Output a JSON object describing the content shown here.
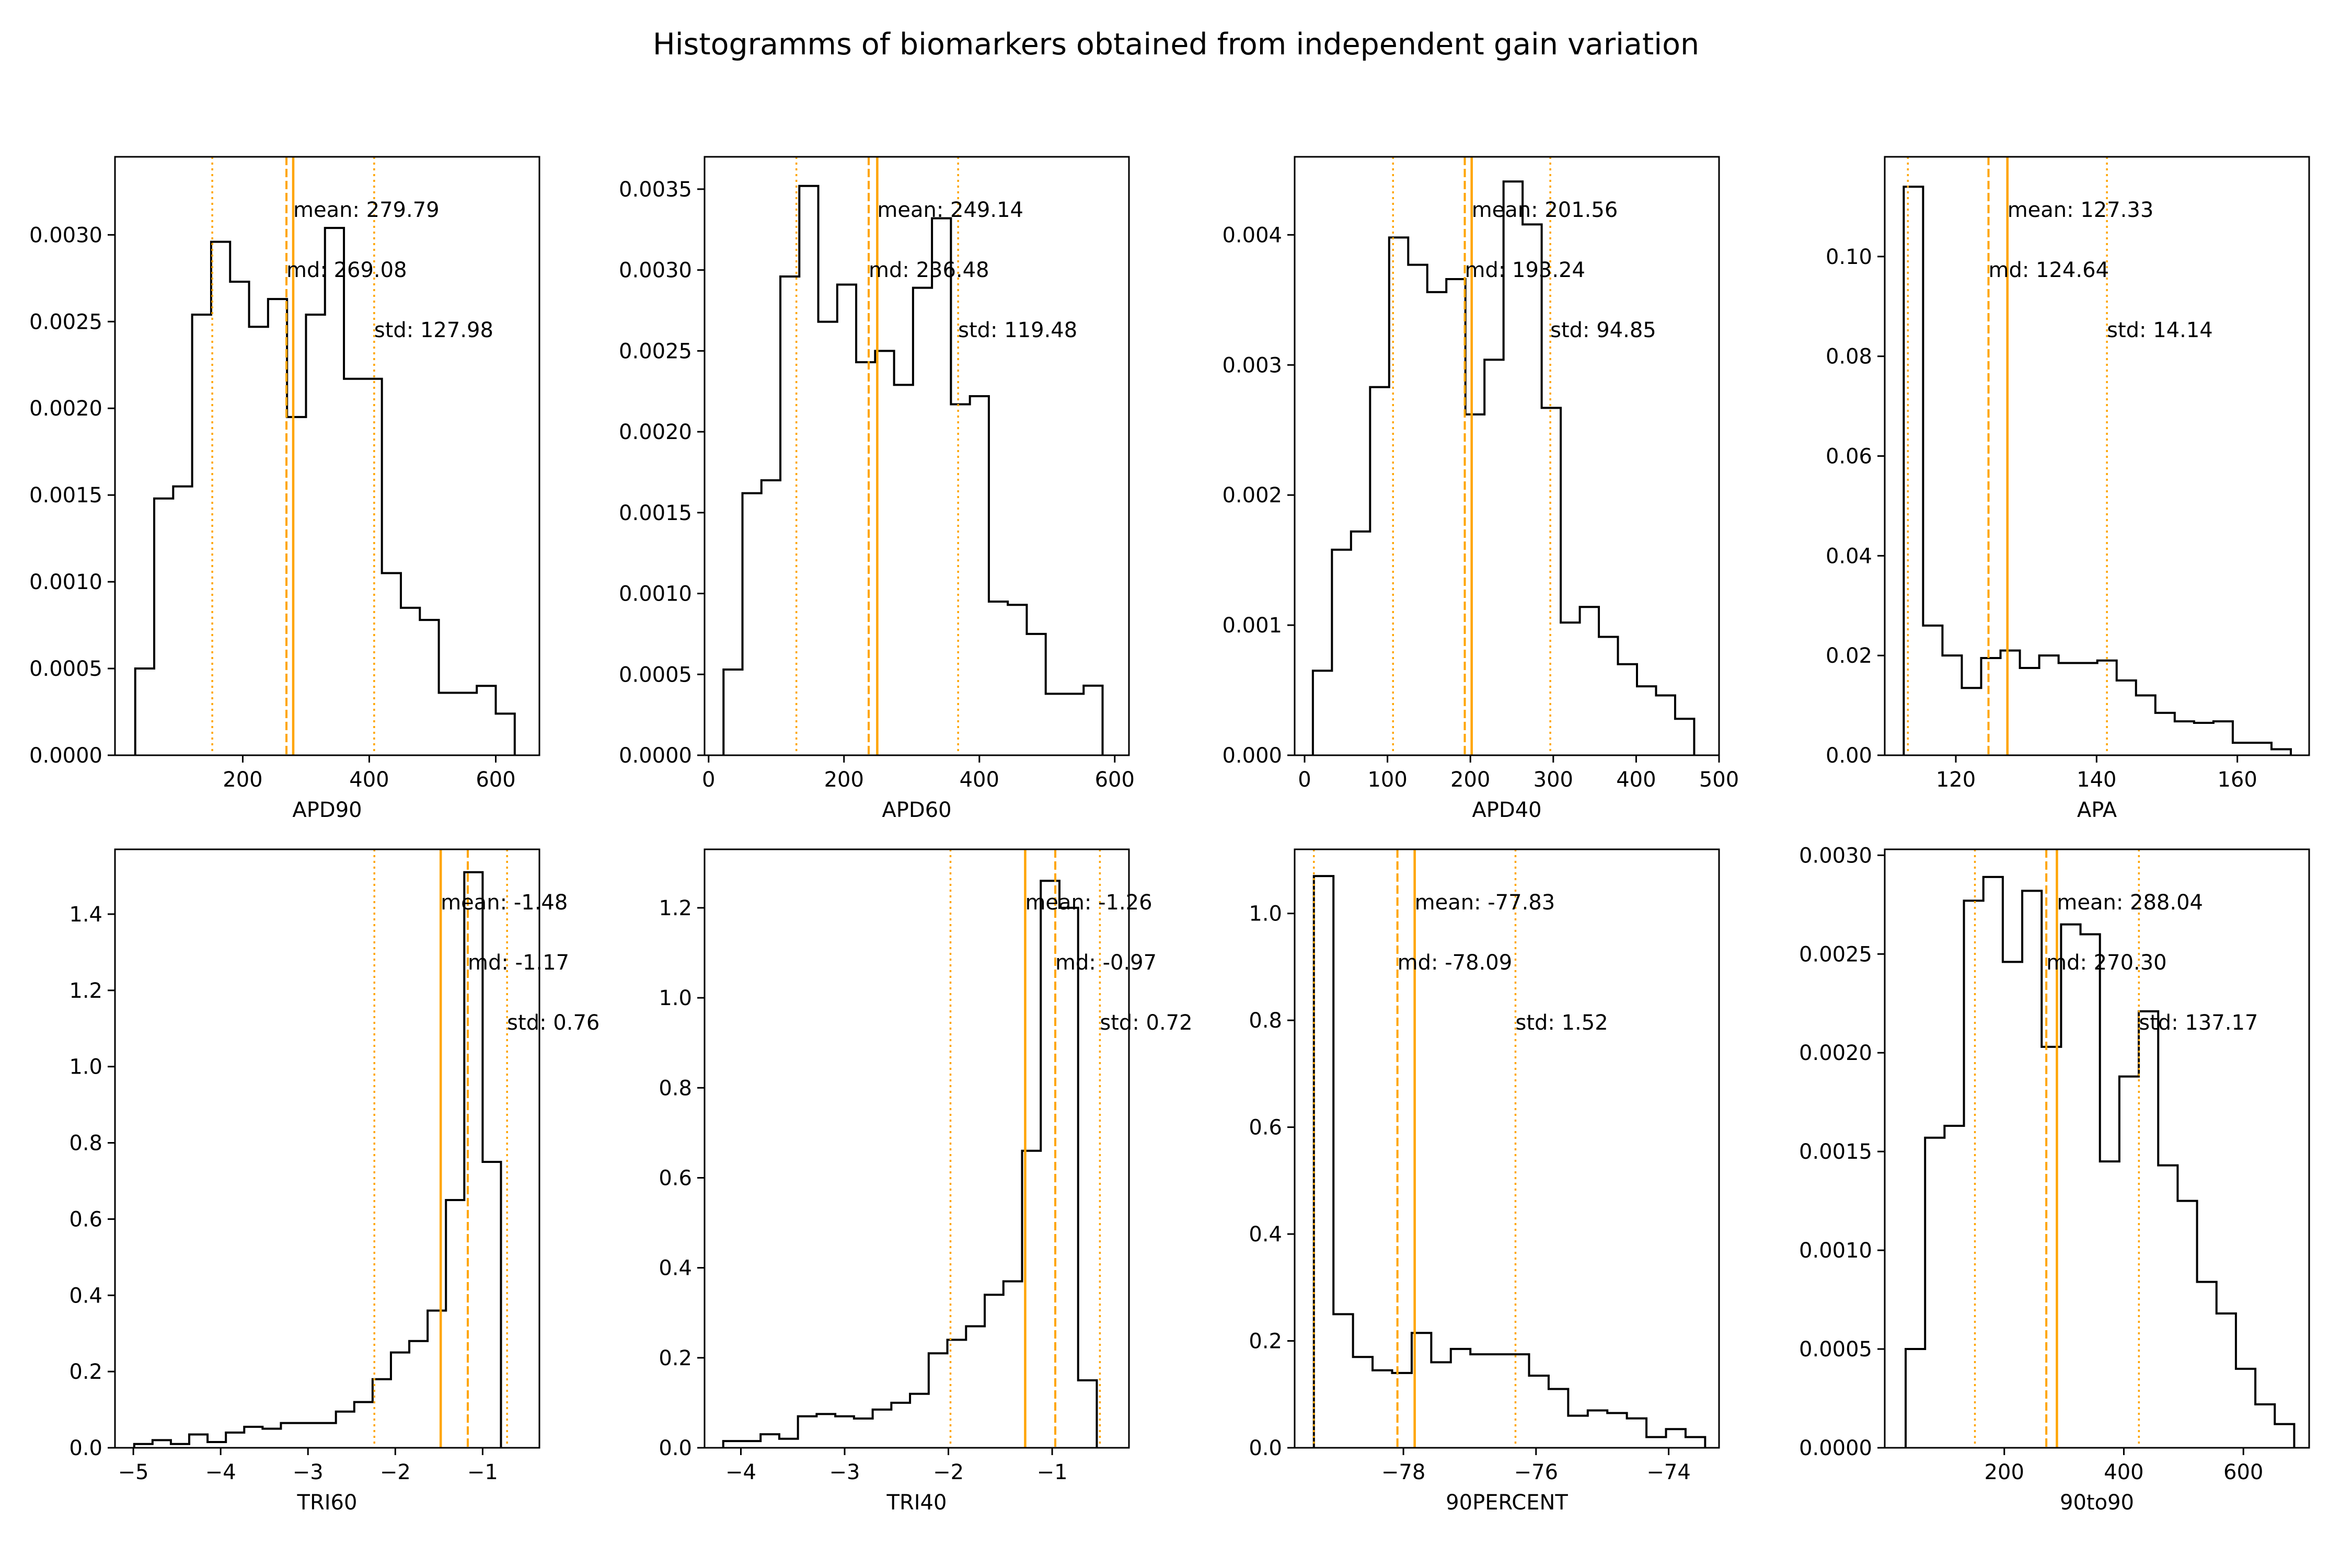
{
  "figure": {
    "title": "Histogramms of biomarkers obtained from independent gain variation"
  },
  "colors": {
    "hist": "#000000",
    "marker": "#ffa500",
    "axes": "#000000",
    "background": "#ffffff"
  },
  "chart_data": [
    {
      "type": "histogram",
      "xlabel": "APD90",
      "ylabel": "",
      "xlim": [
        -2,
        669
      ],
      "ylim": [
        0,
        0.00345
      ],
      "xticks": [
        200,
        400,
        600
      ],
      "xtick_labels": [
        "200",
        "400",
        "600"
      ],
      "yticks": [
        0,
        0.0005,
        0.001,
        0.0015,
        0.002,
        0.0025,
        0.003
      ],
      "ytick_labels": [
        "0.0000",
        "0.0005",
        "0.0010",
        "0.0015",
        "0.0020",
        "0.0025",
        "0.0030"
      ],
      "bin_edges": [
        30,
        60,
        90,
        120,
        150,
        180,
        210,
        240,
        270,
        300,
        330,
        360,
        390,
        420,
        450,
        480,
        510,
        540,
        570,
        600,
        630
      ],
      "density": [
        0.0005,
        0.00148,
        0.00155,
        0.00254,
        0.00296,
        0.00273,
        0.00247,
        0.00263,
        0.00195,
        0.00254,
        0.00304,
        0.00217,
        0.00217,
        0.00105,
        0.00085,
        0.00078,
        0.00036,
        0.00036,
        0.0004,
        0.00024
      ],
      "mean": 279.79,
      "md": 269.08,
      "std": 127.98,
      "markers": {
        "mean": 279.79,
        "median": 269.08,
        "std_lines": [
          151.81,
          407.77
        ]
      },
      "annotations": [
        "mean: 279.79",
        "md: 269.08",
        "std: 127.98"
      ]
    },
    {
      "type": "histogram",
      "xlabel": "APD60",
      "ylabel": "",
      "xlim": [
        -6,
        621
      ],
      "ylim": [
        0,
        0.0037
      ],
      "xticks": [
        0,
        200,
        400,
        600
      ],
      "xtick_labels": [
        "0",
        "200",
        "400",
        "600"
      ],
      "yticks": [
        0,
        0.0005,
        0.001,
        0.0015,
        0.002,
        0.0025,
        0.003,
        0.0035
      ],
      "ytick_labels": [
        "0.0000",
        "0.0005",
        "0.0010",
        "0.0015",
        "0.0020",
        "0.0025",
        "0.0030",
        "0.0035"
      ],
      "bin_edges": [
        22,
        50,
        78,
        106,
        134,
        162,
        190,
        218,
        246,
        274,
        302,
        330,
        358,
        386,
        414,
        442,
        470,
        498,
        526,
        554,
        582
      ],
      "density": [
        0.00053,
        0.00162,
        0.0017,
        0.00296,
        0.00352,
        0.00268,
        0.00291,
        0.00243,
        0.0025,
        0.00229,
        0.00289,
        0.00332,
        0.00217,
        0.00222,
        0.00095,
        0.00093,
        0.00075,
        0.00038,
        0.00038,
        0.00043
      ],
      "mean": 249.14,
      "md": 236.48,
      "std": 119.48,
      "markers": {
        "mean": 249.14,
        "median": 236.48,
        "std_lines": [
          129.66,
          368.62
        ]
      },
      "annotations": [
        "mean: 249.14",
        "md: 236.48",
        "std: 119.48"
      ]
    },
    {
      "type": "histogram",
      "xlabel": "APD40",
      "ylabel": "",
      "xlim": [
        -12,
        500
      ],
      "ylim": [
        0,
        0.0046
      ],
      "xticks": [
        0,
        100,
        200,
        300,
        400,
        500
      ],
      "xtick_labels": [
        "0",
        "100",
        "200",
        "300",
        "400",
        "500"
      ],
      "yticks": [
        0,
        0.001,
        0.002,
        0.003,
        0.004
      ],
      "ytick_labels": [
        "0.000",
        "0.001",
        "0.002",
        "0.003",
        "0.004"
      ],
      "bin_edges": [
        10,
        33,
        56,
        79,
        102,
        125,
        148,
        171,
        194,
        217,
        240,
        263,
        286,
        309,
        332,
        355,
        378,
        401,
        424,
        447,
        470
      ],
      "density": [
        0.00065,
        0.00158,
        0.00172,
        0.00283,
        0.00398,
        0.00377,
        0.00356,
        0.00366,
        0.00262,
        0.00304,
        0.00441,
        0.00408,
        0.00267,
        0.00102,
        0.00114,
        0.00091,
        0.0007,
        0.00053,
        0.00046,
        0.00028
      ],
      "mean": 201.56,
      "md": 193.24,
      "std": 94.85,
      "markers": {
        "mean": 201.56,
        "median": 193.24,
        "std_lines": [
          106.71,
          296.41
        ]
      },
      "annotations": [
        "mean: 201.56",
        "md: 193.24",
        "std: 94.85"
      ]
    },
    {
      "type": "histogram",
      "xlabel": "APA",
      "ylabel": "",
      "xlim": [
        109.9,
        170.2
      ],
      "ylim": [
        0,
        0.12
      ],
      "xticks": [
        120,
        140,
        160
      ],
      "xtick_labels": [
        "120",
        "140",
        "160"
      ],
      "yticks": [
        0,
        0.02,
        0.04,
        0.06,
        0.08,
        0.1
      ],
      "ytick_labels": [
        "0.00",
        "0.02",
        "0.04",
        "0.06",
        "0.08",
        "0.10"
      ],
      "bin_edges": [
        112.6,
        115.35,
        118.1,
        120.85,
        123.6,
        126.35,
        129.1,
        131.85,
        134.6,
        137.35,
        140.1,
        142.85,
        145.6,
        148.35,
        151.1,
        153.85,
        156.6,
        159.35,
        162.1,
        164.85,
        167.6
      ],
      "density": [
        0.114,
        0.026,
        0.02,
        0.0135,
        0.0195,
        0.021,
        0.0175,
        0.02,
        0.0185,
        0.0185,
        0.019,
        0.015,
        0.012,
        0.0085,
        0.0068,
        0.0065,
        0.0068,
        0.0025,
        0.0025,
        0.0012
      ],
      "mean": 127.33,
      "md": 124.64,
      "std": 14.14,
      "markers": {
        "mean": 127.33,
        "median": 124.64,
        "std_lines": [
          113.19,
          141.47
        ]
      },
      "annotations": [
        "mean: 127.33",
        "md: 124.64",
        "std: 14.14"
      ]
    },
    {
      "type": "histogram",
      "xlabel": "TRI60",
      "ylabel": "",
      "xlim": [
        -5.21,
        -0.35
      ],
      "ylim": [
        0,
        1.57
      ],
      "xticks": [
        -5,
        -4,
        -3,
        -2,
        -1
      ],
      "xtick_labels": [
        "−5",
        "−4",
        "−3",
        "−2",
        "−1"
      ],
      "yticks": [
        0,
        0.2,
        0.4,
        0.6,
        0.8,
        1.0,
        1.2,
        1.4
      ],
      "ytick_labels": [
        "0.0",
        "0.2",
        "0.4",
        "0.6",
        "0.8",
        "1.0",
        "1.2",
        "1.4"
      ],
      "bin_edges": [
        -4.99,
        -4.78,
        -4.57,
        -4.36,
        -4.15,
        -3.94,
        -3.73,
        -3.52,
        -3.31,
        -3.1,
        -2.89,
        -2.68,
        -2.47,
        -2.26,
        -2.05,
        -1.84,
        -1.63,
        -1.42,
        -1.21,
        -1.0,
        -0.79
      ],
      "density": [
        0.01,
        0.02,
        0.01,
        0.035,
        0.015,
        0.04,
        0.055,
        0.05,
        0.065,
        0.065,
        0.065,
        0.095,
        0.12,
        0.18,
        0.25,
        0.28,
        0.36,
        0.65,
        1.51,
        0.75
      ],
      "mean": -1.48,
      "md": -1.17,
      "std": 0.76,
      "markers": {
        "mean": -1.48,
        "median": -1.17,
        "std_lines": [
          -2.24,
          -0.72
        ]
      },
      "annotations": [
        "mean: -1.48",
        "md: -1.17",
        "std: 0.76"
      ]
    },
    {
      "type": "histogram",
      "xlabel": "TRI40",
      "ylabel": "",
      "xlim": [
        -4.35,
        -0.26
      ],
      "ylim": [
        0,
        1.33
      ],
      "xticks": [
        -4,
        -3,
        -2,
        -1
      ],
      "xtick_labels": [
        "−4",
        "−3",
        "−2",
        "−1"
      ],
      "yticks": [
        0,
        0.2,
        0.4,
        0.6,
        0.8,
        1.0,
        1.2
      ],
      "ytick_labels": [
        "0.0",
        "0.2",
        "0.4",
        "0.6",
        "0.8",
        "1.0",
        "1.2"
      ],
      "bin_edges": [
        -4.17,
        -3.99,
        -3.81,
        -3.63,
        -3.45,
        -3.27,
        -3.09,
        -2.91,
        -2.73,
        -2.55,
        -2.37,
        -2.19,
        -2.01,
        -1.83,
        -1.65,
        -1.47,
        -1.29,
        -1.11,
        -0.93,
        -0.75,
        -0.57
      ],
      "density": [
        0.015,
        0.015,
        0.03,
        0.02,
        0.07,
        0.075,
        0.07,
        0.065,
        0.085,
        0.1,
        0.12,
        0.21,
        0.24,
        0.27,
        0.34,
        0.37,
        0.66,
        1.26,
        1.2,
        0.15
      ],
      "mean": -1.26,
      "md": -0.97,
      "std": 0.72,
      "markers": {
        "mean": -1.26,
        "median": -0.97,
        "std_lines": [
          -1.98,
          -0.54
        ]
      },
      "annotations": [
        "mean: -1.26",
        "md: -0.97",
        "std: 0.72"
      ]
    },
    {
      "type": "histogram",
      "xlabel": "90PERCENT",
      "ylabel": "",
      "xlim": [
        -79.64,
        -73.24
      ],
      "ylim": [
        0,
        1.12
      ],
      "xticks": [
        -78,
        -76,
        -74
      ],
      "xtick_labels": [
        "−78",
        "−76",
        "−74"
      ],
      "yticks": [
        0,
        0.2,
        0.4,
        0.6,
        0.8,
        1.0
      ],
      "ytick_labels": [
        "0.0",
        "0.2",
        "0.4",
        "0.6",
        "0.8",
        "1.0"
      ],
      "bin_edges": [
        -79.35,
        -79.055,
        -78.76,
        -78.465,
        -78.17,
        -77.875,
        -77.58,
        -77.285,
        -76.99,
        -76.695,
        -76.4,
        -76.105,
        -75.81,
        -75.515,
        -75.22,
        -74.925,
        -74.63,
        -74.335,
        -74.04,
        -73.745,
        -73.45
      ],
      "density": [
        1.07,
        0.25,
        0.17,
        0.145,
        0.14,
        0.215,
        0.16,
        0.185,
        0.175,
        0.175,
        0.175,
        0.135,
        0.11,
        0.06,
        0.07,
        0.065,
        0.055,
        0.02,
        0.035,
        0.02
      ],
      "mean": -77.83,
      "md": -78.09,
      "std": 1.52,
      "markers": {
        "mean": -77.83,
        "median": -78.09,
        "std_lines": [
          -79.35,
          -76.31
        ]
      },
      "annotations": [
        "mean: -77.83",
        "md: -78.09",
        "std: 1.52"
      ]
    },
    {
      "type": "histogram",
      "xlabel": "90to90",
      "ylabel": "",
      "xlim": [
        0,
        710
      ],
      "ylim": [
        0,
        0.00303
      ],
      "xticks": [
        200,
        400,
        600
      ],
      "xtick_labels": [
        "200",
        "400",
        "600"
      ],
      "yticks": [
        0,
        0.0005,
        0.001,
        0.0015,
        0.002,
        0.0025,
        0.003
      ],
      "ytick_labels": [
        "0.0000",
        "0.0005",
        "0.0010",
        "0.0015",
        "0.0020",
        "0.0025",
        "0.0030"
      ],
      "bin_edges": [
        35,
        67.5,
        100,
        132.5,
        165,
        197.5,
        230,
        262.5,
        295,
        327.5,
        360,
        392.5,
        425,
        457.5,
        490,
        522.5,
        555,
        587.5,
        620,
        652.5,
        685
      ],
      "density": [
        0.0005,
        0.00157,
        0.00163,
        0.00277,
        0.00289,
        0.00246,
        0.00282,
        0.00203,
        0.00265,
        0.0026,
        0.00145,
        0.00188,
        0.00221,
        0.00143,
        0.00125,
        0.00084,
        0.00068,
        0.0004,
        0.00022,
        0.00012
      ],
      "mean": 288.04,
      "md": 270.3,
      "std": 137.17,
      "markers": {
        "mean": 288.04,
        "median": 270.3,
        "std_lines": [
          150.87,
          425.21
        ]
      },
      "annotations": [
        "mean: 288.04",
        "md: 270.30",
        "std: 137.17"
      ]
    }
  ]
}
